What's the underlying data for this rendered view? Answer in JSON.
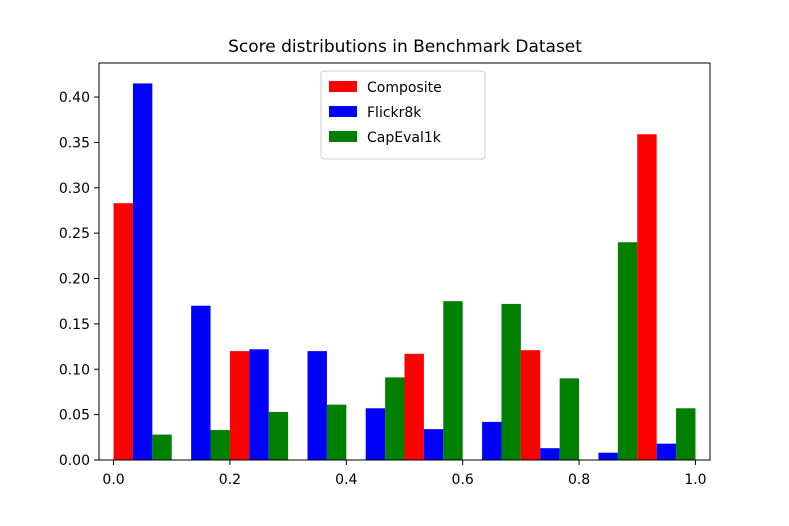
{
  "chart_data": {
    "type": "bar",
    "title": "Score distributions in Benchmark Dataset",
    "xlabel": "",
    "ylabel": "",
    "xlim": [
      -0.025,
      1.025
    ],
    "ylim": [
      0,
      0.4375
    ],
    "xticks": [
      "0.0",
      "0.2",
      "0.4",
      "0.6",
      "0.8",
      "1.0"
    ],
    "yticks": [
      "0.00",
      "0.05",
      "0.10",
      "0.15",
      "0.20",
      "0.25",
      "0.30",
      "0.35",
      "0.40"
    ],
    "bin_width": 0.1,
    "categories": [
      0.05,
      0.15,
      0.25,
      0.35,
      0.45,
      0.55,
      0.65,
      0.75,
      0.85,
      0.95
    ],
    "series": [
      {
        "name": "Composite",
        "color": "#ff0000",
        "values": [
          0.283,
          0.0,
          0.12,
          0.0,
          0.0,
          0.117,
          0.0,
          0.121,
          0.0,
          0.359
        ]
      },
      {
        "name": "Flickr8k",
        "color": "#0000ff",
        "values": [
          0.415,
          0.17,
          0.122,
          0.12,
          0.057,
          0.034,
          0.042,
          0.013,
          0.008,
          0.018
        ]
      },
      {
        "name": "CapEval1k",
        "color": "#008000",
        "values": [
          0.028,
          0.033,
          0.053,
          0.061,
          0.091,
          0.175,
          0.172,
          0.09,
          0.24,
          0.057
        ]
      }
    ],
    "grid": false,
    "legend_position": "upper-center"
  }
}
